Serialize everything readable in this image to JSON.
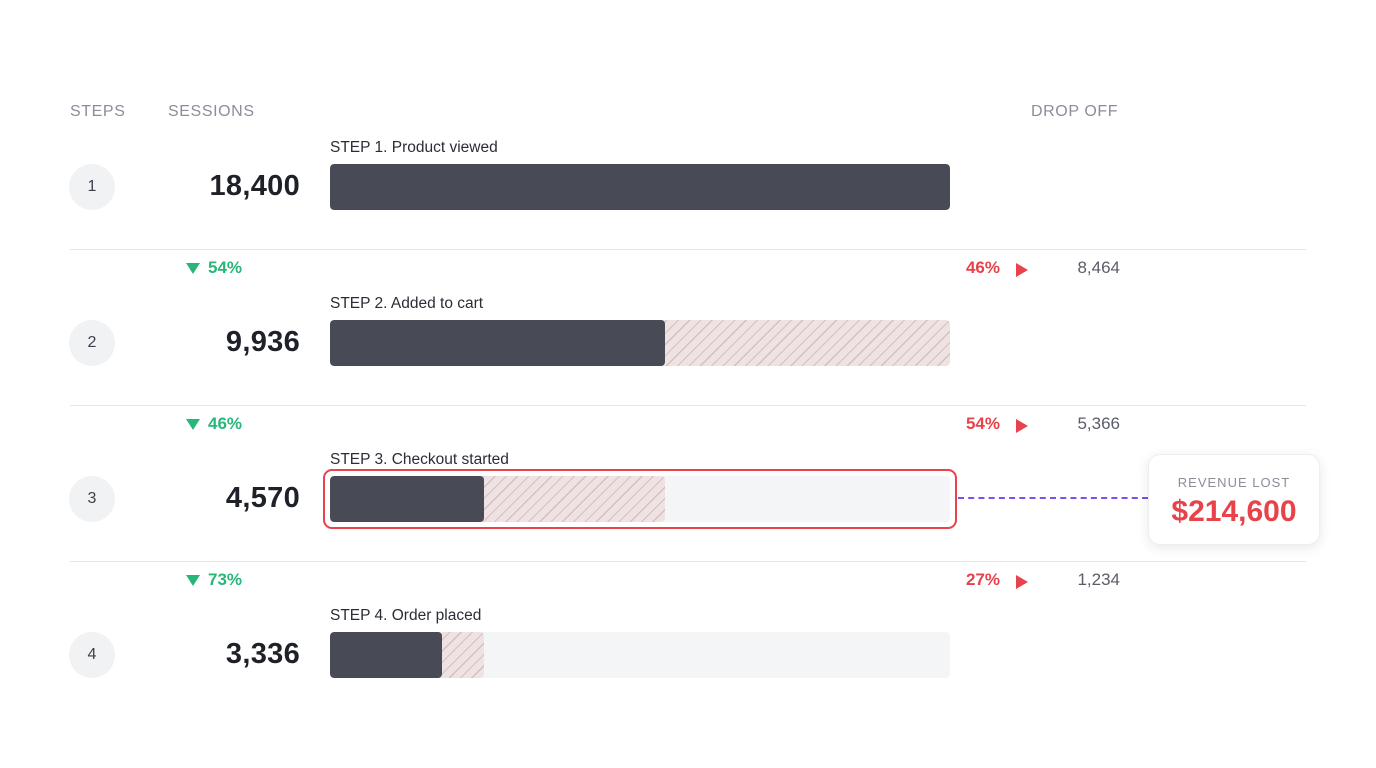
{
  "headers": {
    "steps": "STEPS",
    "sessions": "SESSIONS",
    "drop_off": "DROP OFF"
  },
  "steps": [
    {
      "number": "1",
      "sessions": "18,400",
      "label": "STEP 1. Product viewed",
      "share_of_first_step": 1.0,
      "previous_step_share": 1.0
    },
    {
      "number": "2",
      "sessions": "9,936",
      "label": "STEP 2. Added to cart",
      "share_of_first_step": 0.54,
      "previous_step_share": 1.0
    },
    {
      "number": "3",
      "sessions": "4,570",
      "label": "STEP 3. Checkout started",
      "share_of_first_step": 0.248,
      "previous_step_share": 0.54
    },
    {
      "number": "4",
      "sessions": "3,336",
      "label": "STEP 4. Order placed",
      "share_of_first_step": 0.181,
      "previous_step_share": 0.248
    }
  ],
  "transitions": [
    {
      "conversion": "54%",
      "drop_pct": "46%",
      "drop_count": "8,464"
    },
    {
      "conversion": "46%",
      "drop_pct": "54%",
      "drop_count": "5,366"
    },
    {
      "conversion": "73%",
      "drop_pct": "27%",
      "drop_count": "1,234"
    }
  ],
  "revenue": {
    "label": "REVENUE LOST",
    "value": "$214,600"
  },
  "colors": {
    "bar_fill": "#484a56",
    "dropped_hatch": "#efe2e3",
    "conversion_green": "#28b679",
    "drop_red": "#e8424a",
    "connector_purple": "#7b4ff0"
  }
}
